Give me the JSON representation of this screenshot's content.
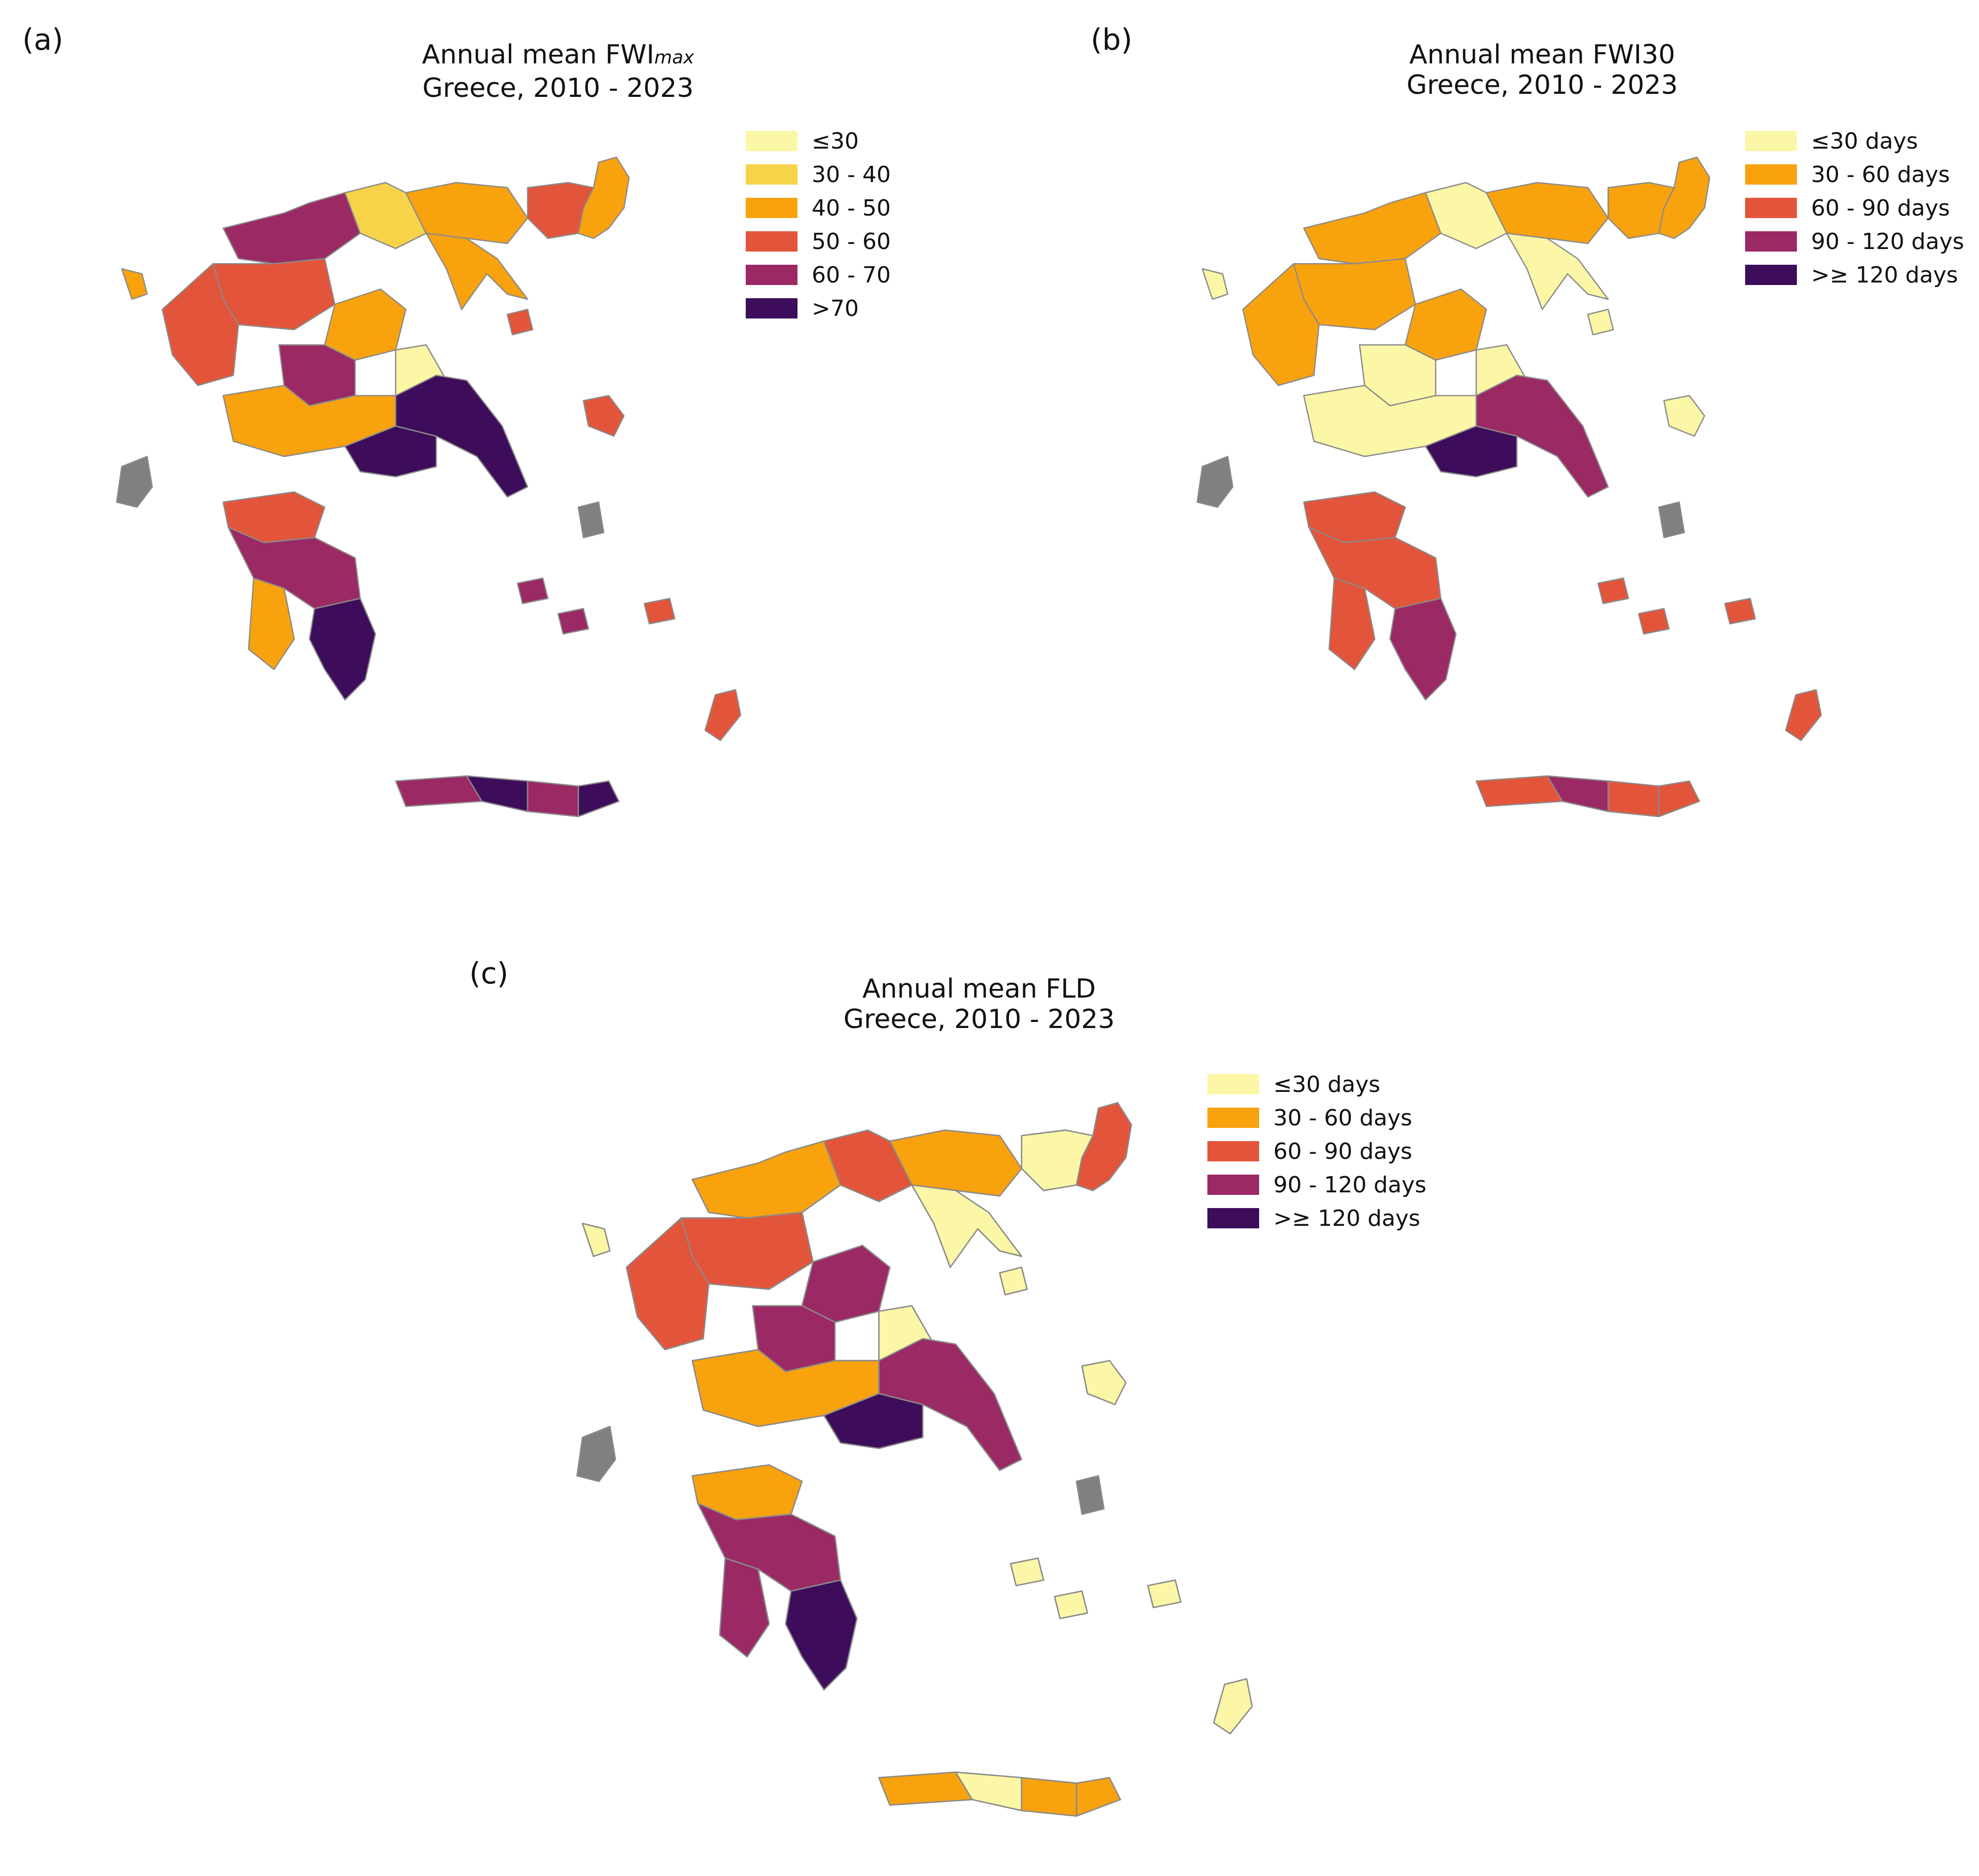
{
  "figure": {
    "panels": [
      {
        "id": "a",
        "label": "(a)",
        "title_main": "Annual mean FWI",
        "title_subscript": "max",
        "title_line2": "Greece, 2010 - 2023",
        "legend": [
          {
            "label": "≤30",
            "color": "#fcf7a6"
          },
          {
            "label": "30 - 40",
            "color": "#f7d34a"
          },
          {
            "label": "40 - 50",
            "color": "#f8a20e"
          },
          {
            "label": "50 - 60",
            "color": "#e3553a"
          },
          {
            "label": "60 - 70",
            "color": "#9b2964"
          },
          {
            "label": ">70",
            "color": "#3d0c5a"
          }
        ]
      },
      {
        "id": "b",
        "label": "(b)",
        "title_main": "Annual mean FWI30",
        "title_line2": "Greece, 2010 - 2023",
        "legend": [
          {
            "label": "≤30 days",
            "color": "#fcf7a6"
          },
          {
            "label": "30 - 60 days",
            "color": "#f8a20e"
          },
          {
            "label": "60 - 90 days",
            "color": "#e3553a"
          },
          {
            "label": "90 - 120 days",
            "color": "#9b2964"
          },
          {
            "label": ">≥ 120 days",
            "color": "#3d0c5a"
          }
        ]
      },
      {
        "id": "c",
        "label": "(c)",
        "title_main": "Annual mean FLD",
        "title_line2": "Greece, 2010 - 2023",
        "legend": [
          {
            "label": "≤30 days",
            "color": "#fcf7a6"
          },
          {
            "label": "30 - 60 days",
            "color": "#f8a20e"
          },
          {
            "label": "60 - 90 days",
            "color": "#e3553a"
          },
          {
            "label": "90 - 120 days",
            "color": "#9b2964"
          },
          {
            "label": ">≥ 120 days",
            "color": "#3d0c5a"
          }
        ]
      }
    ],
    "no_data_color": "#808080",
    "regions": {
      "a": {
        "ne_thrace": 2,
        "thrace_mid": 3,
        "macedonia_e": 2,
        "macedonia_c": 1,
        "macedonia_nw": 4,
        "macedonia_w": 3,
        "epirus": 3,
        "corfu": 2,
        "thessaly_n": 2,
        "thessaly_c": 4,
        "thessaly_e": 0,
        "chalkidiki": 2,
        "lesvos": 3,
        "central_greece": 2,
        "attica": 5,
        "evia": 5,
        "ionian": 6,
        "peloponnese_n": 3,
        "peloponnese_c": 4,
        "peloponnese_w": 2,
        "peloponnese_s": 5,
        "crete_w": 4,
        "crete_c": 5,
        "crete_e": 4,
        "crete_far_e": 5,
        "rhodes": 3,
        "cyclades_1": 4,
        "cyclades_2": 4,
        "dodecanese": 3,
        "lemnos": 3,
        "chios": 6
      },
      "b": {
        "ne_thrace": 1,
        "thrace_mid": 1,
        "macedonia_e": 1,
        "macedonia_c": 0,
        "macedonia_nw": 1,
        "macedonia_w": 1,
        "epirus": 1,
        "corfu": 0,
        "thessaly_n": 1,
        "thessaly_c": 0,
        "thessaly_e": 0,
        "chalkidiki": 0,
        "lesvos": 0,
        "central_greece": 0,
        "attica": 4,
        "evia": 3,
        "ionian": 6,
        "peloponnese_n": 2,
        "peloponnese_c": 2,
        "peloponnese_w": 2,
        "peloponnese_s": 3,
        "crete_w": 2,
        "crete_c": 3,
        "crete_e": 2,
        "crete_far_e": 2,
        "rhodes": 2,
        "cyclades_1": 2,
        "cyclades_2": 2,
        "dodecanese": 2,
        "lemnos": 0,
        "chios": 6
      },
      "c": {
        "ne_thrace": 2,
        "thrace_mid": 0,
        "macedonia_e": 1,
        "macedonia_c": 2,
        "macedonia_nw": 1,
        "macedonia_w": 2,
        "epirus": 2,
        "corfu": 0,
        "thessaly_n": 3,
        "thessaly_c": 3,
        "thessaly_e": 0,
        "chalkidiki": 0,
        "lesvos": 0,
        "central_greece": 1,
        "attica": 4,
        "evia": 3,
        "ionian": 6,
        "peloponnese_n": 1,
        "peloponnese_c": 3,
        "peloponnese_w": 3,
        "peloponnese_s": 4,
        "crete_w": 1,
        "crete_c": 0,
        "crete_e": 1,
        "crete_far_e": 1,
        "rhodes": 0,
        "cyclades_1": 0,
        "cyclades_2": 0,
        "dodecanese": 0,
        "lemnos": 0,
        "chios": 6
      }
    }
  }
}
